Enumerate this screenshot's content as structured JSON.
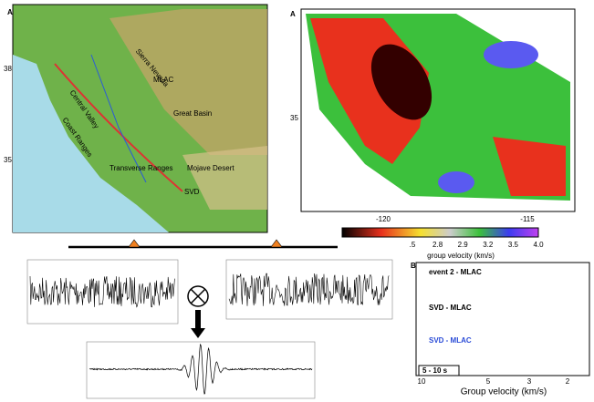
{
  "left_map": {
    "panel_label": "A",
    "lat_ticks": [
      "38",
      "35"
    ],
    "labels": [
      "MLAC",
      "Great Basin",
      "Central Valley",
      "Coast Ranges",
      "Transverse Ranges",
      "Mojave Desert",
      "SVD",
      "Sierra Nevada"
    ]
  },
  "right_map": {
    "panel_label": "A",
    "lat_ticks": [
      "35"
    ],
    "lon_ticks": [
      "-120",
      "-115"
    ],
    "colorbar": {
      "ticks": [
        ".5",
        "2.8",
        "2.9",
        "3.2",
        "3.5",
        "4.0"
      ],
      "label": "group velocity (km/s)"
    }
  },
  "correlation": {
    "traces": [
      "event 2 - MLAC",
      "SVD - MLAC",
      "SVD - MLAC"
    ],
    "band": "5 - 10 s",
    "x_ticks": [
      "10",
      "5",
      "3",
      "2"
    ],
    "x_label": "Group velocity (km/s)"
  }
}
